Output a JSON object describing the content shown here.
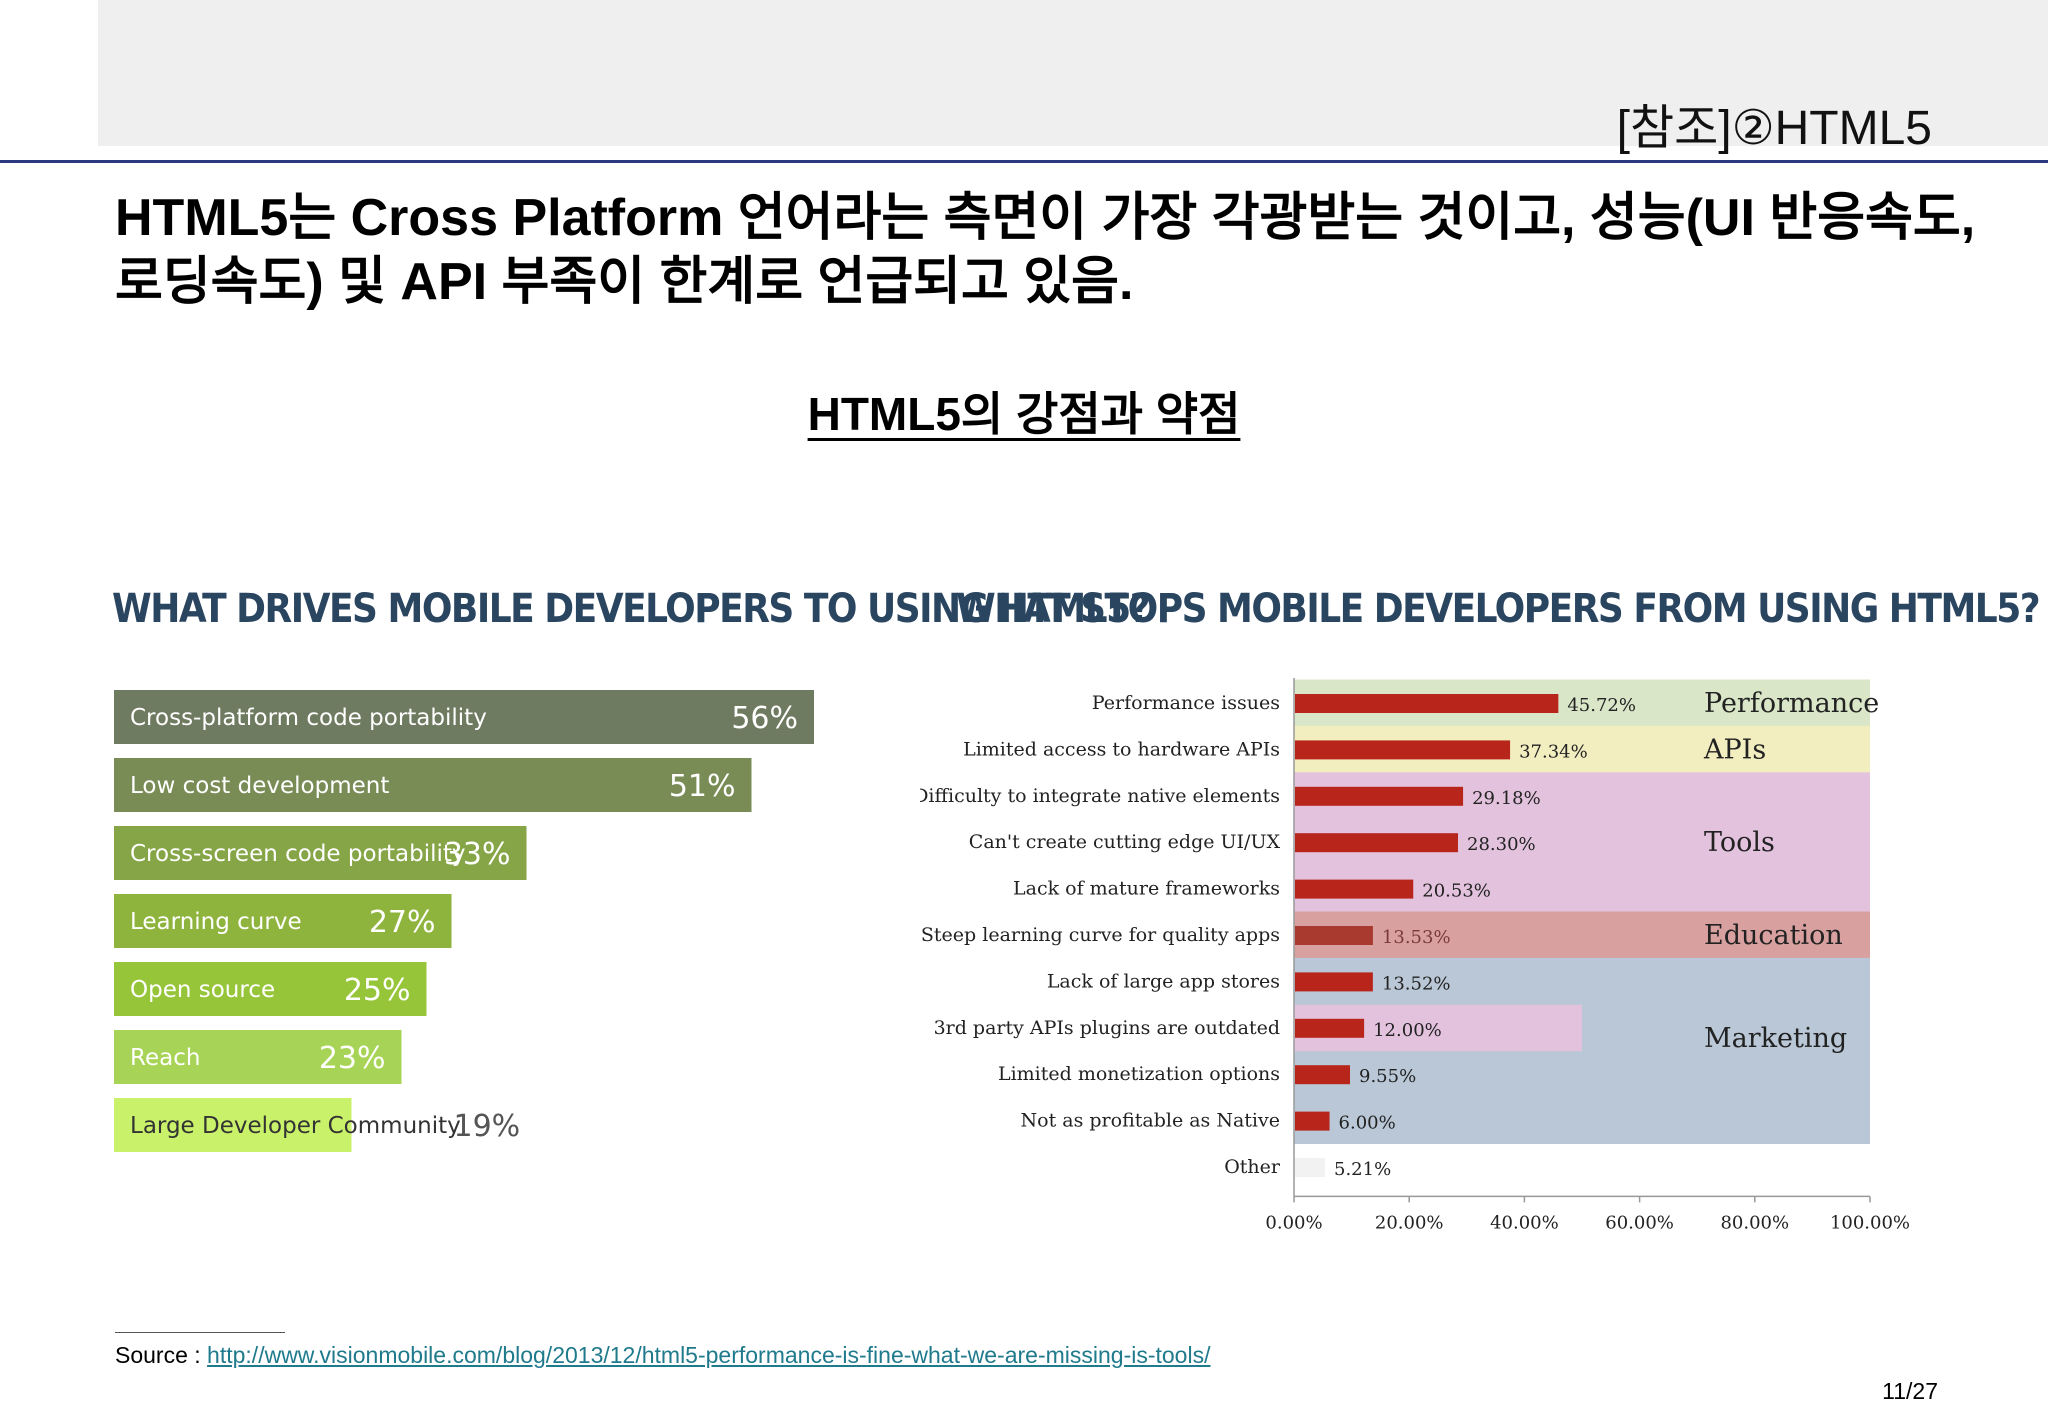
{
  "header": {
    "section_label": "[참조]②HTML5"
  },
  "headline": "HTML5는 Cross Platform 언어라는 측면이 가장 각광받는 것이고, 성능(UI 반응속도, 로딩속도) 및 API 부족이 한계로 언급되고 있음.",
  "subtitle": "HTML5의 강점과 약점",
  "footer": {
    "source_prefix": "Source : ",
    "source_url": "http://www.visionmobile.com/blog/2013/12/html5-performance-is-fine-what-we-are-missing-is-tools/",
    "page": "11/27"
  },
  "chart_data": [
    {
      "type": "bar",
      "orientation": "horizontal",
      "title": "WHAT DRIVES MOBILE DEVELOPERS TO USING HTML5?",
      "categories": [
        "Cross-platform code portability",
        "Low cost development",
        "Cross-screen code portability",
        "Learning curve",
        "Open source",
        "Reach",
        "Large Developer Community"
      ],
      "values": [
        56,
        51,
        33,
        27,
        25,
        23,
        19
      ],
      "value_labels": [
        "56%",
        "51%",
        "33%",
        "27%",
        "25%",
        "23%",
        "19%"
      ],
      "colors": [
        "#6f7b60",
        "#7a8c56",
        "#86a546",
        "#8fb43e",
        "#97c53a",
        "#a7d456",
        "#c9f26a"
      ]
    },
    {
      "type": "bar",
      "orientation": "horizontal",
      "title": "WHAT STOPS MOBILE DEVELOPERS FROM USING HTML5?",
      "categories": [
        "Performance issues",
        "Limited access to hardware APIs",
        "Difficulty to integrate native elements",
        "Can't create cutting edge UI/UX",
        "Lack of mature frameworks",
        "Steep learning curve for quality apps",
        "Lack of large app stores",
        "3rd party APIs plugins are outdated",
        "Limited monetization options",
        "Not as profitable as Native",
        "Other"
      ],
      "values": [
        45.72,
        37.34,
        29.18,
        28.3,
        20.53,
        13.53,
        13.52,
        12.0,
        9.55,
        6.0,
        5.21
      ],
      "value_labels": [
        "45.72%",
        "37.34%",
        "29.18%",
        "28.30%",
        "20.53%",
        "13.53%",
        "13.52%",
        "12.00%",
        "9.55%",
        "6.00%",
        "5.21%"
      ],
      "xlim": [
        0,
        100
      ],
      "x_ticks": [
        "0.00%",
        "20.00%",
        "40.00%",
        "60.00%",
        "80.00%",
        "100.00%"
      ],
      "bar_color": "#b8261b",
      "groups": [
        {
          "label": "Performance",
          "rows": [
            0,
            0
          ],
          "color": "#d9e6c8"
        },
        {
          "label": "APIs",
          "rows": [
            1,
            1
          ],
          "color": "#f2eec0"
        },
        {
          "label": "Tools",
          "rows": [
            2,
            4
          ],
          "color": "#e3c2dd"
        },
        {
          "label": "Education",
          "rows": [
            5,
            5
          ],
          "color": "#d9a0a0"
        },
        {
          "label": "Marketing",
          "rows": [
            6,
            9
          ],
          "color": "#b9c7d6"
        }
      ]
    }
  ]
}
